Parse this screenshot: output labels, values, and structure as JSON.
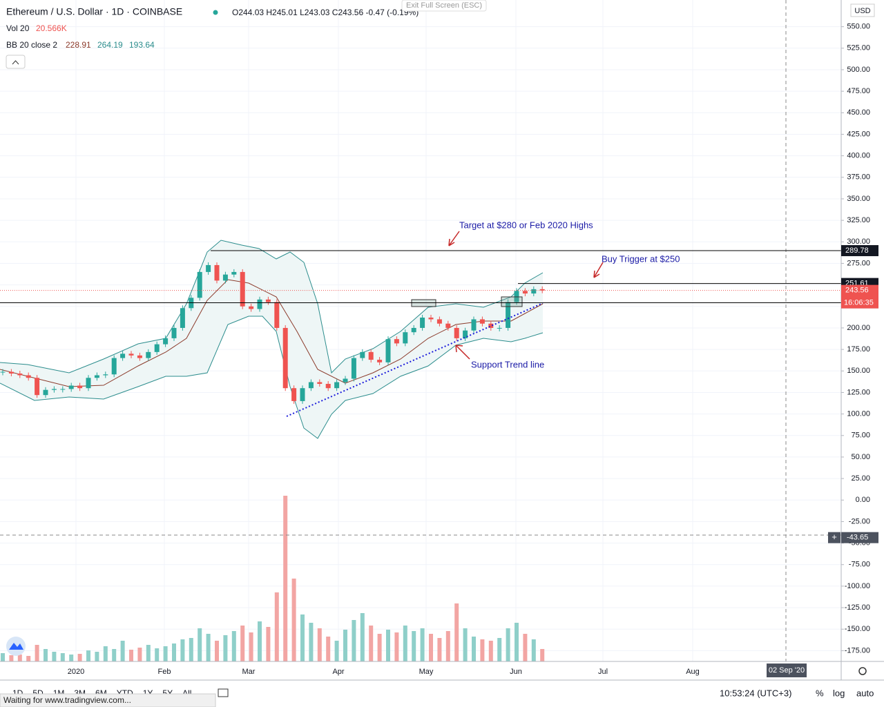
{
  "header": {
    "symbol": "Ethereum / U.S. Dollar · 1D · COINBASE",
    "ohlc": "O244.03 H245.01 L243.03 C243.56 -0.47 (-0.19%)",
    "exit": "Exit Full Screen (ESC)",
    "vol_name": "Vol 20",
    "vol_value": "20.566K",
    "bb_name": "BB 20 close 2",
    "bb_values": [
      "228.91",
      "264.19",
      "193.64"
    ]
  },
  "chart_data": {
    "type": "candlestick",
    "closes": [
      149,
      147,
      145,
      142,
      122,
      128,
      129,
      129,
      133,
      130,
      142,
      145,
      146,
      165,
      170,
      168,
      165,
      172,
      181,
      188,
      200,
      223,
      235,
      265,
      273,
      255,
      262,
      265,
      225,
      222,
      233,
      230,
      200,
      130,
      115,
      130,
      137,
      135,
      130,
      137,
      141,
      165,
      172,
      163,
      160,
      187,
      182,
      195,
      200,
      212,
      210,
      205,
      200,
      188,
      197,
      210,
      205,
      200,
      200,
      230,
      243,
      240,
      245,
      243.56
    ],
    "volumes": [
      60,
      45,
      50,
      40,
      120,
      90,
      70,
      60,
      50,
      55,
      80,
      70,
      110,
      90,
      150,
      85,
      100,
      120,
      95,
      110,
      130,
      160,
      170,
      240,
      200,
      150,
      190,
      220,
      260,
      210,
      290,
      250,
      500,
      1200,
      600,
      340,
      280,
      240,
      180,
      150,
      230,
      300,
      350,
      260,
      200,
      230,
      210,
      260,
      220,
      240,
      200,
      170,
      220,
      420,
      240,
      180,
      160,
      150,
      170,
      240,
      280,
      200,
      160,
      90
    ],
    "ylim": [
      -187.5,
      581
    ],
    "yticks": [
      {
        "value": 550,
        "label": "550.00"
      },
      {
        "value": 525,
        "label": "525.00"
      },
      {
        "value": 500,
        "label": "500.00"
      },
      {
        "value": 475,
        "label": "475.00"
      },
      {
        "value": 450,
        "label": "450.00"
      },
      {
        "value": 425,
        "label": "425.00"
      },
      {
        "value": 400,
        "label": "400.00"
      },
      {
        "value": 375,
        "label": "375.00"
      },
      {
        "value": 350,
        "label": "350.00"
      },
      {
        "value": 325,
        "label": "325.00"
      },
      {
        "value": 300,
        "label": "300.00"
      },
      {
        "value": 275,
        "label": "275.00"
      },
      {
        "value": 250,
        "label": "250.00"
      },
      {
        "value": 225,
        "label": "225.00"
      },
      {
        "value": 200,
        "label": "200.00"
      },
      {
        "value": 175,
        "label": "175.00"
      },
      {
        "value": 150,
        "label": "150.00"
      },
      {
        "value": 125,
        "label": "125.00"
      },
      {
        "value": 100,
        "label": "100.00"
      },
      {
        "value": 75,
        "label": "75.00"
      },
      {
        "value": 50,
        "label": "50.00"
      },
      {
        "value": 25,
        "label": "25.00"
      },
      {
        "value": 0,
        "label": "0.00"
      },
      {
        "value": -25,
        "label": "-25.00"
      },
      {
        "value": -50,
        "label": "-50.00"
      },
      {
        "value": -75,
        "label": "-75.00"
      },
      {
        "value": -100,
        "label": "-100.00"
      },
      {
        "value": -125,
        "label": "-125.00"
      },
      {
        "value": -150,
        "label": "-150.00"
      },
      {
        "value": -175,
        "label": "-175.00"
      }
    ],
    "currency": "USD",
    "levels": [
      289.78,
      251.61,
      229.19
    ],
    "last_price": 243.56,
    "countdown": "16:06:35",
    "crosshair_price": -43.65,
    "annotations": [
      "Target at $280 or Feb 2020 Highs",
      "Buy Trigger at $250",
      "Support Trend line"
    ],
    "x_labels": [
      "2020",
      "Feb",
      "Mar",
      "Apr",
      "May",
      "Jun",
      "Jul",
      "Aug"
    ],
    "crosshair_date": "02 Sep '20"
  },
  "footer": {
    "ranges": [
      "1D",
      "5D",
      "1M",
      "3M",
      "6M",
      "YTD",
      "1Y",
      "5Y",
      "All"
    ],
    "time": "10:53:24 (UTC+3)",
    "percent": "%",
    "log": "log",
    "auto": "auto",
    "status": "Waiting for www.tradingview.com..."
  }
}
